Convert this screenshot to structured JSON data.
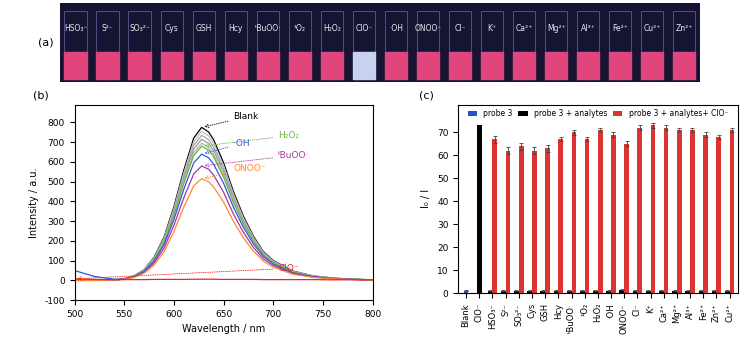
{
  "chart_data": [
    {
      "type": "photo",
      "title": "(a)",
      "categories": [
        "HSO₃⁻",
        "S²⁻",
        "SO₃²⁻",
        "Cys",
        "GSH",
        "Hcy",
        "ᵗBuOO·",
        "¹O₂",
        "H₂O₂",
        "ClO⁻",
        "·OH",
        "ONOO⁻",
        "Cl⁻",
        "K⁺",
        "Ca²⁺",
        "Mg²⁺",
        "Al³⁺",
        "Fe²⁺",
        "Cu²⁺",
        "Zn²⁺"
      ],
      "colors": [
        "#e0457e",
        "#e0457e",
        "#e0457e",
        "#e0457e",
        "#e0457e",
        "#e0457e",
        "#e0457e",
        "#e0457e",
        "#e0457e",
        "#c8d2ee",
        "#e0457e",
        "#e0457e",
        "#e0457e",
        "#e0457e",
        "#e0457e",
        "#e0457e",
        "#e0457e",
        "#e0457e",
        "#e0457e",
        "#e0457e"
      ]
    },
    {
      "type": "line",
      "title": "(b)",
      "x_label": "Wavelength / nm",
      "y_label": "Intensity / a.u.",
      "x": [
        500,
        520,
        540,
        550,
        560,
        570,
        580,
        590,
        600,
        610,
        620,
        628,
        635,
        640,
        650,
        660,
        670,
        680,
        690,
        700,
        720,
        740,
        760,
        780,
        800
      ],
      "series": [
        {
          "name": "Blank",
          "color": "#000000",
          "values": [
            0,
            0,
            2,
            8,
            23,
            54,
            116,
            217,
            372,
            558,
            721,
            775,
            752,
            713,
            597,
            450,
            326,
            225,
            147,
            101,
            47,
            23,
            12,
            6,
            3
          ]
        },
        {
          "color": "#c0c0c0",
          "values": [
            0,
            0,
            2,
            8,
            23,
            53,
            113,
            211,
            362,
            544,
            702,
            755,
            732,
            695,
            581,
            438,
            317,
            219,
            143,
            98,
            45,
            23,
            11,
            6,
            3
          ]
        },
        {
          "color": "#a8a8a8",
          "values": [
            0,
            0,
            2,
            7,
            22,
            51,
            110,
            206,
            353,
            529,
            684,
            735,
            713,
            676,
            566,
            426,
            309,
            213,
            140,
            96,
            44,
            22,
            11,
            6,
            3
          ]
        },
        {
          "color": "#9c9c9c",
          "values": [
            0,
            0,
            2,
            7,
            21,
            50,
            107,
            200,
            343,
            515,
            665,
            715,
            694,
            658,
            551,
            415,
            300,
            207,
            136,
            93,
            43,
            21,
            11,
            6,
            3
          ]
        },
        {
          "color": "#b4b4b4",
          "values": [
            0,
            0,
            2,
            7,
            21,
            49,
            104,
            195,
            334,
            500,
            646,
            695,
            674,
            639,
            535,
            403,
            292,
            202,
            132,
            90,
            42,
            21,
            10,
            6,
            3
          ]
        },
        {
          "name": "H₂O₂",
          "color": "#66bb33",
          "values": [
            0,
            0,
            2,
            7,
            20,
            48,
            102,
            190,
            326,
            490,
            632,
            680,
            660,
            626,
            524,
            394,
            286,
            197,
            129,
            88,
            41,
            20,
            10,
            5,
            3
          ]
        },
        {
          "name": "·OH",
          "color": "#3355dd",
          "values": [
            50,
            20,
            6,
            8,
            19,
            45,
            96,
            179,
            307,
            461,
            595,
            640,
            621,
            589,
            493,
            371,
            269,
            186,
            122,
            83,
            38,
            19,
            10,
            5,
            3
          ]
        },
        {
          "name": "ᵗBuOO·",
          "color": "#aa33aa",
          "values": [
            0,
            0,
            2,
            6,
            17,
            41,
            87,
            162,
            278,
            418,
            539,
            580,
            563,
            534,
            447,
            336,
            244,
            168,
            110,
            75,
            35,
            17,
            9,
            5,
            2
          ]
        },
        {
          "name": "ONOO⁻",
          "color": "#ff8833",
          "values": [
            0,
            0,
            2,
            5,
            15,
            36,
            77,
            144,
            247,
            371,
            479,
            515,
            500,
            474,
            397,
            299,
            216,
            149,
            98,
            67,
            31,
            15,
            8,
            4,
            2
          ]
        },
        {
          "name": "ClO⁻",
          "color": "#ee2222",
          "values": [
            8,
            5,
            4,
            4,
            4,
            4,
            5,
            5,
            5,
            5,
            6,
            6,
            6,
            6,
            5,
            5,
            5,
            5,
            4,
            4,
            4,
            4,
            3,
            3,
            3
          ]
        }
      ],
      "xlim": [
        500,
        800
      ],
      "ylim": [
        -100,
        890
      ],
      "xticks": [
        500,
        550,
        600,
        650,
        700,
        750,
        800
      ],
      "yticks": [
        -100,
        0,
        100,
        200,
        300,
        400,
        500,
        600,
        700,
        800
      ]
    },
    {
      "type": "bar",
      "title": "(c)",
      "y_label": "I₀ / I",
      "categories": [
        "Blank",
        "ClO⁻",
        "HSO₃⁻",
        "S²⁻",
        "SO₃²⁻",
        "Cys",
        "GSH",
        "Hcy",
        "ᵗBuOO·",
        "¹O₂",
        "H₂O₂",
        "·OH",
        "ONOO⁻",
        "Cl⁻",
        "K⁺",
        "Ca²⁺",
        "Mg²⁺",
        "Al³⁺",
        "Fe²⁺",
        "Zn²⁺",
        "Cu²⁺"
      ],
      "series": [
        {
          "name": "probe 3",
          "color": "#2255cc",
          "values": [
            1.0,
            null,
            null,
            null,
            null,
            null,
            null,
            null,
            null,
            null,
            null,
            null,
            null,
            null,
            null,
            null,
            null,
            null,
            null,
            null,
            null
          ],
          "errors": [
            0.2,
            null,
            null,
            null,
            null,
            null,
            null,
            null,
            null,
            null,
            null,
            null,
            null,
            null,
            null,
            null,
            null,
            null,
            null,
            null,
            null
          ]
        },
        {
          "name": "probe 3 + analytes",
          "color": "#000000",
          "values": [
            null,
            73,
            1.0,
            1.0,
            1.0,
            1.0,
            1.0,
            1.0,
            1.0,
            1.0,
            1.0,
            1.0,
            1.5,
            1.0,
            1.0,
            1.0,
            1.0,
            1.0,
            1.0,
            1.0,
            1.0
          ],
          "errors": [
            null,
            null,
            0.2,
            0.2,
            0.2,
            0.2,
            0.2,
            0.2,
            0.2,
            0.2,
            0.2,
            0.2,
            0.2,
            0.2,
            0.2,
            0.2,
            0.2,
            0.2,
            0.2,
            0.2,
            0.2
          ]
        },
        {
          "name": "probe 3 + analytes+ ClO⁻",
          "color": "#dd3333",
          "values": [
            null,
            null,
            67,
            62,
            64,
            62,
            63,
            67,
            70,
            67,
            71,
            69,
            65,
            72,
            73,
            72,
            71,
            71,
            69,
            68,
            71
          ],
          "errors": [
            null,
            null,
            1.5,
            1.5,
            1.5,
            1.5,
            1.5,
            1.0,
            1.0,
            1.0,
            1.0,
            1.0,
            1.0,
            1.0,
            1.0,
            1.0,
            1.0,
            1.0,
            1.0,
            1.0,
            1.0
          ]
        }
      ],
      "ylim": [
        0,
        82
      ],
      "yticks": [
        0,
        10,
        20,
        30,
        40,
        50,
        60,
        70
      ],
      "legend": "upper center"
    }
  ]
}
